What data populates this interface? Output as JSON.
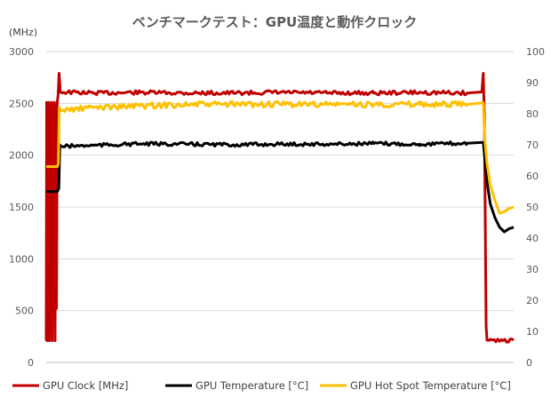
{
  "chart_data": {
    "type": "line",
    "title": "ベンチマークテスト：GPU温度と動作クロック",
    "y_left_unit": "(MHz)",
    "y_left_range": [
      0,
      3000
    ],
    "y_left_ticks": [
      "0",
      "500",
      "1000",
      "1500",
      "2000",
      "2500",
      "3000"
    ],
    "y_right_range": [
      0,
      100
    ],
    "y_right_ticks": [
      "0",
      "10",
      "20",
      "30",
      "40",
      "50",
      "60",
      "70",
      "80",
      "90",
      "100"
    ],
    "x_range": [
      0,
      100
    ],
    "grid": true,
    "legend_position": "bottom",
    "series": [
      {
        "name": "GPU Clock [MHz]",
        "axis": "left",
        "color": "#c00000",
        "points": [
          [
            0,
            210
          ],
          [
            0.1,
            2510
          ],
          [
            0.2,
            210
          ],
          [
            0.3,
            2500
          ],
          [
            0.4,
            900
          ],
          [
            0.55,
            2510
          ],
          [
            0.7,
            210
          ],
          [
            0.85,
            2480
          ],
          [
            1.0,
            300
          ],
          [
            1.15,
            2510
          ],
          [
            1.3,
            210
          ],
          [
            1.45,
            2500
          ],
          [
            1.6,
            900
          ],
          [
            1.75,
            2510
          ],
          [
            1.9,
            210
          ],
          [
            2.05,
            2480
          ],
          [
            2.2,
            520
          ],
          [
            2.35,
            2510
          ],
          [
            2.55,
            2580
          ],
          [
            2.75,
            2790
          ],
          [
            3.0,
            2610
          ],
          [
            10,
            2600
          ],
          [
            20,
            2605
          ],
          [
            30,
            2600
          ],
          [
            40,
            2600
          ],
          [
            50,
            2605
          ],
          [
            60,
            2600
          ],
          [
            70,
            2600
          ],
          [
            80,
            2605
          ],
          [
            90,
            2600
          ],
          [
            93.2,
            2610
          ],
          [
            93.5,
            2790
          ],
          [
            93.7,
            2400
          ],
          [
            93.9,
            1500
          ],
          [
            94.1,
            350
          ],
          [
            94.3,
            215
          ],
          [
            100,
            215
          ]
        ]
      },
      {
        "name": "GPU Temperature [°C]",
        "axis": "right",
        "color": "#000000",
        "points": [
          [
            0,
            55
          ],
          [
            2.4,
            55
          ],
          [
            2.7,
            56
          ],
          [
            2.9,
            70
          ],
          [
            3.2,
            69.5
          ],
          [
            10,
            69.8
          ],
          [
            20,
            70.3
          ],
          [
            30,
            70.2
          ],
          [
            40,
            70
          ],
          [
            50,
            70.2
          ],
          [
            60,
            70.2
          ],
          [
            70,
            70.4
          ],
          [
            80,
            70.2
          ],
          [
            90,
            70.5
          ],
          [
            93.5,
            70.8
          ],
          [
            93.8,
            66
          ],
          [
            94.3,
            58
          ],
          [
            95,
            51
          ],
          [
            96,
            46.5
          ],
          [
            97,
            43.5
          ],
          [
            98,
            42
          ],
          [
            99,
            43
          ],
          [
            100,
            43.5
          ]
        ]
      },
      {
        "name": "GPU Hot Spot Temperature [°C]",
        "axis": "right",
        "color": "#ffc000",
        "points": [
          [
            0,
            63
          ],
          [
            2.4,
            63
          ],
          [
            2.6,
            64
          ],
          [
            2.8,
            82
          ],
          [
            3.2,
            81
          ],
          [
            10,
            82
          ],
          [
            20,
            82.5
          ],
          [
            30,
            83
          ],
          [
            40,
            83
          ],
          [
            50,
            83
          ],
          [
            60,
            83
          ],
          [
            70,
            83
          ],
          [
            80,
            83
          ],
          [
            90,
            83
          ],
          [
            93.5,
            83.5
          ],
          [
            93.8,
            72
          ],
          [
            94.3,
            64
          ],
          [
            95,
            57
          ],
          [
            96,
            52
          ],
          [
            97,
            48
          ],
          [
            98,
            48.5
          ],
          [
            99,
            49.5
          ],
          [
            100,
            50
          ]
        ]
      }
    ]
  }
}
